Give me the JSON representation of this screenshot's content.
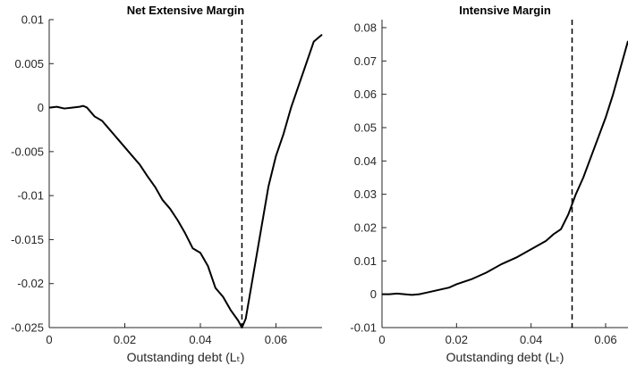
{
  "chart_data": [
    {
      "type": "line",
      "title": "Net Extensive Margin",
      "xlabel": "Outstanding debt (Lₜ)",
      "xlim": [
        0,
        0.0722
      ],
      "xticks": [
        0,
        0.02,
        0.04,
        0.06
      ],
      "ylim": [
        -0.025,
        0.01
      ],
      "yticks": [
        -0.025,
        -0.02,
        -0.015,
        -0.01,
        -0.005,
        0,
        0.005,
        0.01
      ],
      "vline": 0.051,
      "color": "#000000",
      "x": [
        0,
        0.002,
        0.004,
        0.006,
        0.008,
        0.009,
        0.01,
        0.012,
        0.014,
        0.016,
        0.018,
        0.02,
        0.022,
        0.024,
        0.026,
        0.028,
        0.03,
        0.032,
        0.034,
        0.036,
        0.038,
        0.04,
        0.042,
        0.044,
        0.046,
        0.048,
        0.05,
        0.051,
        0.052,
        0.054,
        0.056,
        0.058,
        0.06,
        0.062,
        0.064,
        0.066,
        0.068,
        0.07,
        0.0722
      ],
      "values": [
        0,
        0.0001,
        -0.0001,
        0,
        0.0001,
        0.0002,
        0,
        -0.001,
        -0.0015,
        -0.0025,
        -0.0035,
        -0.0045,
        -0.0055,
        -0.0065,
        -0.0078,
        -0.009,
        -0.0105,
        -0.0115,
        -0.0128,
        -0.0143,
        -0.016,
        -0.0165,
        -0.018,
        -0.0205,
        -0.0215,
        -0.023,
        -0.0242,
        -0.025,
        -0.024,
        -0.019,
        -0.014,
        -0.009,
        -0.0055,
        -0.003,
        0,
        0.0025,
        0.005,
        0.0075,
        0.0083
      ]
    },
    {
      "type": "line",
      "title": "Intensive Margin",
      "xlabel": "Outstanding debt (Lₜ)",
      "xlim": [
        0,
        0.066
      ],
      "xticks": [
        0,
        0.02,
        0.04,
        0.06
      ],
      "ylim": [
        -0.01,
        0.0824
      ],
      "yticks": [
        -0.01,
        0,
        0.01,
        0.02,
        0.03,
        0.04,
        0.05,
        0.06,
        0.07,
        0.08
      ],
      "vline": 0.051,
      "color": "#000000",
      "x": [
        0,
        0.002,
        0.004,
        0.006,
        0.008,
        0.01,
        0.012,
        0.014,
        0.016,
        0.018,
        0.02,
        0.024,
        0.028,
        0.032,
        0.036,
        0.04,
        0.044,
        0.046,
        0.048,
        0.05,
        0.052,
        0.054,
        0.056,
        0.058,
        0.06,
        0.062,
        0.064,
        0.066
      ],
      "values": [
        0,
        0,
        0.0002,
        0,
        -0.0002,
        0,
        0.0005,
        0.001,
        0.0015,
        0.002,
        0.003,
        0.0045,
        0.0065,
        0.009,
        0.011,
        0.0135,
        0.016,
        0.018,
        0.0195,
        0.024,
        0.03,
        0.035,
        0.041,
        0.047,
        0.053,
        0.06,
        0.068,
        0.076
      ]
    }
  ]
}
